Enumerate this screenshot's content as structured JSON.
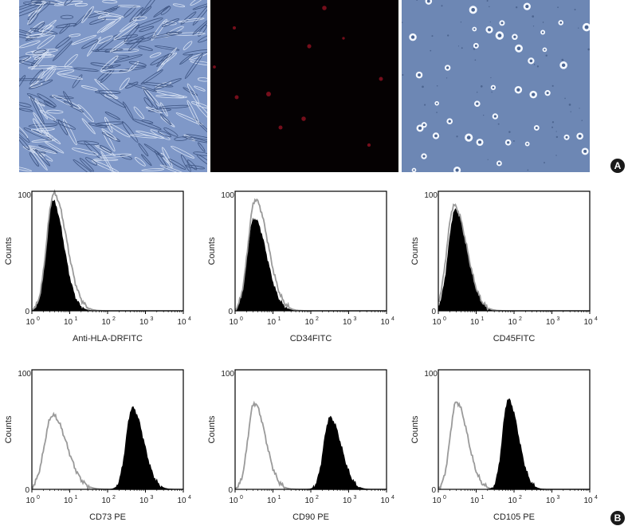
{
  "panel_labels": {
    "a": "A",
    "b": "B"
  },
  "micrographs": [
    {
      "name": "phase-contrast-spindle-cells",
      "tone": "#7f98c8"
    },
    {
      "name": "fluorescence-dark-field",
      "tone": "#050102"
    },
    {
      "name": "phase-contrast-round-cells",
      "tone": "#6d87b4"
    }
  ],
  "colors": {
    "filled": "#000000",
    "outline": "#9a9a9a",
    "axis": "#000000"
  },
  "chart_data": [
    {
      "type": "area",
      "xlabel": "Anti-HLA-DRFITC",
      "ylabel": "Counts",
      "xscale": "log",
      "xlim": [
        1,
        10000
      ],
      "ylim": [
        0,
        100
      ],
      "yticks": [
        "0",
        "100"
      ],
      "xticks": [
        "10",
        "10",
        "10",
        "10",
        "10"
      ],
      "xtick_exponents": [
        "0",
        "1",
        "2",
        "3",
        "4"
      ],
      "series": [
        {
          "style": "filled",
          "peak_x": 3.5,
          "peak_y": 92,
          "width": 0.22
        },
        {
          "style": "outline",
          "peak_x": 3.8,
          "peak_y": 98,
          "width": 0.25
        }
      ]
    },
    {
      "type": "area",
      "xlabel": "CD34FITC",
      "ylabel": "Counts",
      "xscale": "log",
      "xlim": [
        1,
        10000
      ],
      "ylim": [
        0,
        100
      ],
      "yticks": [
        "0",
        "100"
      ],
      "xticks": [
        "10",
        "10",
        "10",
        "10",
        "10"
      ],
      "xtick_exponents": [
        "0",
        "1",
        "2",
        "3",
        "4"
      ],
      "series": [
        {
          "style": "filled",
          "peak_x": 3.2,
          "peak_y": 77,
          "width": 0.24
        },
        {
          "style": "outline",
          "peak_x": 3.4,
          "peak_y": 93,
          "width": 0.25
        }
      ]
    },
    {
      "type": "area",
      "xlabel": "CD45FITC",
      "ylabel": "Counts",
      "xscale": "log",
      "xlim": [
        1,
        10000
      ],
      "ylim": [
        0,
        100
      ],
      "yticks": [
        "0",
        "100"
      ],
      "xticks": [
        "10",
        "10",
        "10",
        "10",
        "10"
      ],
      "xtick_exponents": [
        "0",
        "1",
        "2",
        "3",
        "4"
      ],
      "series": [
        {
          "style": "filled",
          "peak_x": 2.8,
          "peak_y": 84,
          "width": 0.24
        },
        {
          "style": "outline",
          "peak_x": 2.6,
          "peak_y": 88,
          "width": 0.25
        }
      ]
    },
    {
      "type": "area",
      "xlabel": "CD73 PE",
      "ylabel": "Counts",
      "xscale": "log",
      "xlim": [
        1,
        10000
      ],
      "ylim": [
        0,
        100
      ],
      "yticks": [
        "0",
        "100"
      ],
      "xticks": [
        "10",
        "10",
        "10",
        "10",
        "10"
      ],
      "xtick_exponents": [
        "0",
        "1",
        "2",
        "3",
        "4"
      ],
      "series": [
        {
          "style": "outline",
          "peak_x": 3.5,
          "peak_y": 62,
          "width": 0.28
        },
        {
          "style": "filled",
          "peak_x": 450,
          "peak_y": 68,
          "width": 0.22
        }
      ]
    },
    {
      "type": "area",
      "xlabel": "CD90 PE",
      "ylabel": "Counts",
      "xscale": "log",
      "xlim": [
        1,
        10000
      ],
      "ylim": [
        0,
        100
      ],
      "yticks": [
        "0",
        "100"
      ],
      "xticks": [
        "10",
        "10",
        "10",
        "10",
        "10"
      ],
      "xtick_exponents": [
        "0",
        "1",
        "2",
        "3",
        "4"
      ],
      "series": [
        {
          "style": "outline",
          "peak_x": 3.2,
          "peak_y": 72,
          "width": 0.22
        },
        {
          "style": "filled",
          "peak_x": 320,
          "peak_y": 60,
          "width": 0.22
        }
      ]
    },
    {
      "type": "area",
      "xlabel": "CD105 PE",
      "ylabel": "Counts",
      "xscale": "log",
      "xlim": [
        1,
        10000
      ],
      "ylim": [
        0,
        100
      ],
      "yticks": [
        "0",
        "100"
      ],
      "xticks": [
        "10",
        "10",
        "10",
        "10",
        "10"
      ],
      "xtick_exponents": [
        "0",
        "1",
        "2",
        "3",
        "4"
      ],
      "series": [
        {
          "style": "outline",
          "peak_x": 3.0,
          "peak_y": 73,
          "width": 0.22
        },
        {
          "style": "filled",
          "peak_x": 70,
          "peak_y": 75,
          "width": 0.2
        }
      ]
    }
  ]
}
